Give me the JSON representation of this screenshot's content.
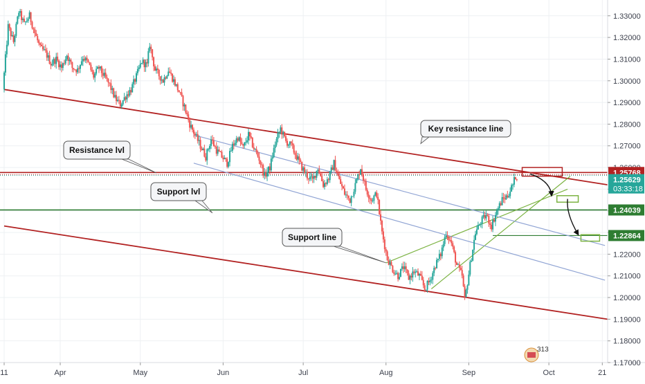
{
  "chart_data": {
    "type": "candlestick",
    "title": "",
    "xlabel": "",
    "ylabel": "",
    "ylim": [
      1.17,
      1.336
    ],
    "x_ticks": [
      {
        "label": "11",
        "day": 0
      },
      {
        "label": "Apr",
        "day": 21
      },
      {
        "label": "May",
        "day": 51
      },
      {
        "label": "Jun",
        "day": 82
      },
      {
        "label": "Jul",
        "day": 112
      },
      {
        "label": "Aug",
        "day": 143
      },
      {
        "label": "Sep",
        "day": 174
      },
      {
        "label": "Oct",
        "day": 204
      },
      {
        "label": "21",
        "day": 224
      }
    ],
    "y_ticks": [
      "1.33000",
      "1.32000",
      "1.31000",
      "1.30000",
      "1.29000",
      "1.28000",
      "1.27000",
      "1.26000",
      "1.25000",
      "1.24000",
      "1.23000",
      "1.22000",
      "1.21000",
      "1.20000",
      "1.19000",
      "1.18000",
      "1.17000"
    ],
    "price_path": [
      [
        0,
        1.296
      ],
      [
        2,
        1.325
      ],
      [
        4,
        1.318
      ],
      [
        6,
        1.332
      ],
      [
        8,
        1.326
      ],
      [
        10,
        1.33
      ],
      [
        12,
        1.322
      ],
      [
        14,
        1.315
      ],
      [
        16,
        1.313
      ],
      [
        18,
        1.308
      ],
      [
        20,
        1.31
      ],
      [
        22,
        1.306
      ],
      [
        24,
        1.312
      ],
      [
        26,
        1.306
      ],
      [
        28,
        1.305
      ],
      [
        30,
        1.311
      ],
      [
        32,
        1.308
      ],
      [
        34,
        1.302
      ],
      [
        36,
        1.306
      ],
      [
        38,
        1.302
      ],
      [
        40,
        1.298
      ],
      [
        42,
        1.292
      ],
      [
        44,
        1.289
      ],
      [
        46,
        1.293
      ],
      [
        48,
        1.296
      ],
      [
        50,
        1.302
      ],
      [
        52,
        1.309
      ],
      [
        54,
        1.307
      ],
      [
        55,
        1.317
      ],
      [
        57,
        1.305
      ],
      [
        60,
        1.3
      ],
      [
        62,
        1.305
      ],
      [
        64,
        1.3
      ],
      [
        66,
        1.295
      ],
      [
        68,
        1.288
      ],
      [
        70,
        1.28
      ],
      [
        72,
        1.275
      ],
      [
        74,
        1.27
      ],
      [
        76,
        1.265
      ],
      [
        78,
        1.273
      ],
      [
        80,
        1.268
      ],
      [
        82,
        1.265
      ],
      [
        84,
        1.262
      ],
      [
        86,
        1.27
      ],
      [
        88,
        1.274
      ],
      [
        90,
        1.269
      ],
      [
        92,
        1.275
      ],
      [
        94,
        1.269
      ],
      [
        96,
        1.264
      ],
      [
        98,
        1.256
      ],
      [
        100,
        1.26
      ],
      [
        102,
        1.271
      ],
      [
        104,
        1.278
      ],
      [
        106,
        1.272
      ],
      [
        108,
        1.27
      ],
      [
        110,
        1.265
      ],
      [
        112,
        1.26
      ],
      [
        114,
        1.256
      ],
      [
        116,
        1.254
      ],
      [
        118,
        1.26
      ],
      [
        120,
        1.252
      ],
      [
        122,
        1.255
      ],
      [
        124,
        1.262
      ],
      [
        126,
        1.254
      ],
      [
        128,
        1.248
      ],
      [
        130,
        1.245
      ],
      [
        132,
        1.252
      ],
      [
        134,
        1.26
      ],
      [
        136,
        1.25
      ],
      [
        138,
        1.245
      ],
      [
        140,
        1.248
      ],
      [
        142,
        1.23
      ],
      [
        144,
        1.218
      ],
      [
        146,
        1.213
      ],
      [
        148,
        1.21
      ],
      [
        150,
        1.214
      ],
      [
        152,
        1.209
      ],
      [
        154,
        1.212
      ],
      [
        156,
        1.21
      ],
      [
        158,
        1.204
      ],
      [
        160,
        1.208
      ],
      [
        162,
        1.215
      ],
      [
        164,
        1.22
      ],
      [
        166,
        1.23
      ],
      [
        168,
        1.225
      ],
      [
        170,
        1.215
      ],
      [
        172,
        1.21
      ],
      [
        173,
        1.199
      ],
      [
        175,
        1.215
      ],
      [
        177,
        1.23
      ],
      [
        179,
        1.235
      ],
      [
        181,
        1.238
      ],
      [
        183,
        1.233
      ],
      [
        185,
        1.24
      ],
      [
        187,
        1.245
      ],
      [
        189,
        1.247
      ],
      [
        191,
        1.252
      ],
      [
        192,
        1.256
      ]
    ],
    "reference_levels": [
      {
        "name": "Resistance lvl",
        "price": 1.2577,
        "color": "#b22222",
        "label": "1.25768"
      },
      {
        "name": "Current price",
        "price": 1.2563,
        "color": "#26a69a",
        "label": "1.25629",
        "countdown": "03:33:18"
      },
      {
        "name": "Support lvl",
        "price": 1.2404,
        "color": "#2e7d32",
        "label": "1.24039"
      },
      {
        "name": "Target",
        "price": 1.2286,
        "color": "#2e7d32",
        "label": "1.22864"
      }
    ],
    "trend_lines": [
      {
        "name": "Key resistance line",
        "color": "#b22222",
        "points": [
          [
            0,
            1.296
          ],
          [
            226,
            1.252
          ]
        ]
      },
      {
        "name": "Lower channel line",
        "color": "#b22222",
        "points": [
          [
            0,
            1.233
          ],
          [
            226,
            1.19
          ]
        ]
      },
      {
        "name": "Support line",
        "color": "#7cb342",
        "points": [
          [
            143,
            1.216
          ],
          [
            211,
            1.25
          ]
        ]
      },
      {
        "name": "Rising wedge line",
        "color": "#7cb342",
        "points": [
          [
            160,
            1.204
          ],
          [
            212,
            1.256
          ]
        ]
      },
      {
        "name": "Blue channel upper",
        "color": "#90a4d4",
        "points": [
          [
            71,
            1.275
          ],
          [
            225,
            1.224
          ]
        ]
      },
      {
        "name": "Blue channel lower",
        "color": "#90a4d4",
        "points": [
          [
            71,
            1.262
          ],
          [
            225,
            1.208
          ]
        ]
      }
    ],
    "target_boxes": [
      {
        "name": "resistance-zone",
        "color": "#b22222",
        "x": [
          194,
          209
        ],
        "y": [
          1.256,
          1.26
        ]
      },
      {
        "name": "support-zone",
        "color": "#7cb342",
        "x": [
          207,
          215
        ],
        "y": [
          1.244,
          1.247
        ]
      },
      {
        "name": "target-zone",
        "color": "#7cb342",
        "x": [
          216,
          223
        ],
        "y": [
          1.226,
          1.229
        ]
      }
    ],
    "projection_path": [
      [
        197,
        1.257
      ],
      [
        205,
        1.247
      ],
      [
        211,
        1.2455
      ],
      [
        215,
        1.229
      ]
    ],
    "annotations": [
      {
        "text": "Key resistance line",
        "anchor": [
          156,
          1.271
        ]
      },
      {
        "text": "Resistance lvl",
        "anchor": [
          57,
          1.2575
        ]
      },
      {
        "text": "Support lvl",
        "anchor": [
          78,
          1.239
        ]
      },
      {
        "text": "Support line",
        "anchor": [
          143,
          1.216
        ]
      }
    ],
    "badge": {
      "text": "313"
    },
    "colors": {
      "up": "#26a69a",
      "down": "#ef5350",
      "grid": "#eef0f3",
      "axis_text": "#3a3e4a"
    }
  }
}
